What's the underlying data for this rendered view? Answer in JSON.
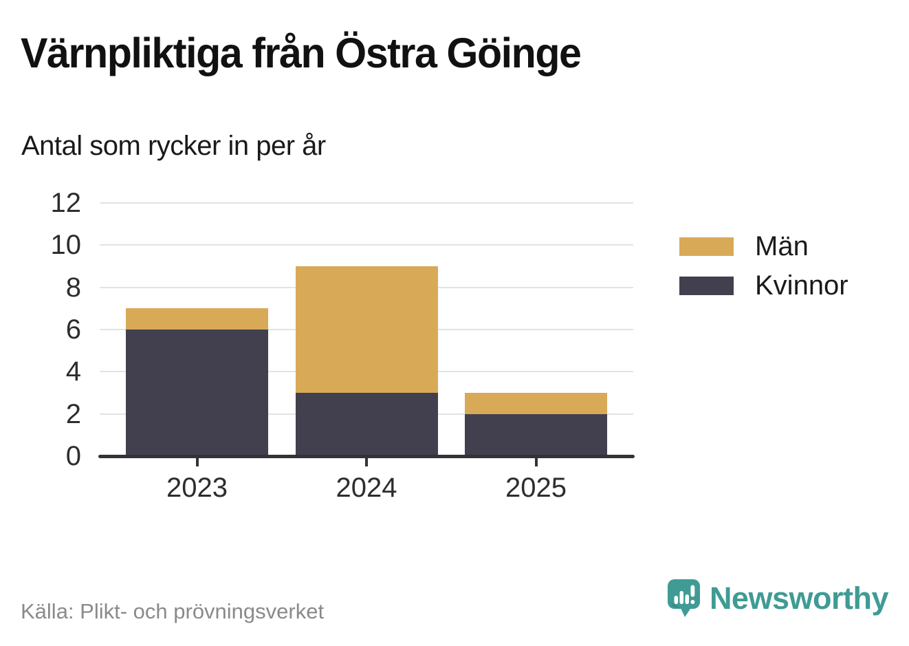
{
  "header": {
    "title": "Värnpliktiga från Östra Göinge",
    "subtitle": "Antal som rycker in per år"
  },
  "chart_data": {
    "type": "bar",
    "stacked": true,
    "title": "Värnpliktiga från Östra Göinge",
    "subtitle": "Antal som rycker in per år",
    "categories": [
      "2023",
      "2024",
      "2025"
    ],
    "series": [
      {
        "name": "Män",
        "color": "#d8aa58",
        "values": [
          1,
          6,
          1
        ]
      },
      {
        "name": "Kvinnor",
        "color": "#423f4e",
        "values": [
          6,
          3,
          2
        ]
      }
    ],
    "stack_order_bottom_to_top": [
      "Kvinnor",
      "Män"
    ],
    "xlabel": "",
    "ylabel": "",
    "ylim": [
      0,
      12
    ],
    "yticks": [
      0,
      2,
      4,
      6,
      8,
      10,
      12
    ],
    "grid": "horizontal",
    "legend_position": "right"
  },
  "footer": {
    "source": "Källa: Plikt- och prövningsverket",
    "brand": "Newsworthy"
  },
  "colors": {
    "men": "#d8aa58",
    "women": "#423f4e",
    "gridline": "#e3e3e3",
    "axis": "#343239",
    "tick_label": "#2d2d2d",
    "title": "#111111",
    "source_text": "#8a8a8a",
    "brand_teal": "#3f9b94"
  }
}
